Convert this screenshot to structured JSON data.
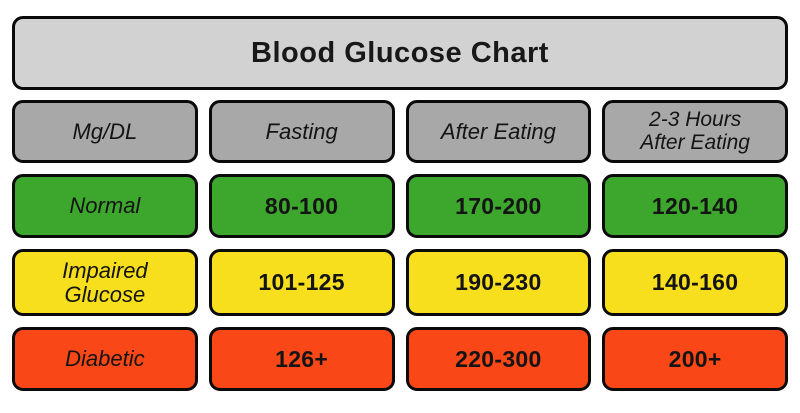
{
  "title": "Blood Glucose Chart",
  "unit_label": "Mg/DL",
  "colors": {
    "title_bg": "#d2d2d2",
    "header_bg": "#a8a8a8",
    "normal_bg": "#3ca62d",
    "impaired_bg": "#f8df1d",
    "diabetic_bg": "#fa4717",
    "border": "#0a0a0a",
    "text": "#141414"
  },
  "header_row": {
    "cells": [
      {
        "lines": [
          "Mg/DL"
        ]
      },
      {
        "lines": [
          "Fasting"
        ]
      },
      {
        "lines": [
          "After Eating"
        ]
      },
      {
        "lines": [
          "2-3 Hours",
          "After Eating"
        ]
      }
    ]
  },
  "rows": [
    {
      "name": "normal",
      "bg": "#3ca62d",
      "label_lines": [
        "Normal"
      ],
      "values": [
        "80-100",
        "170-200",
        "120-140"
      ]
    },
    {
      "name": "impaired-glucose",
      "bg": "#f8df1d",
      "label_lines": [
        "Impaired",
        "Glucose"
      ],
      "values": [
        "101-125",
        "190-230",
        "140-160"
      ]
    },
    {
      "name": "diabetic",
      "bg": "#fa4717",
      "label_lines": [
        "Diabetic"
      ],
      "values": [
        "126+",
        "220-300",
        "200+"
      ]
    }
  ],
  "chart_data": {
    "type": "table",
    "title": "Blood Glucose Chart",
    "unit": "Mg/DL",
    "columns": [
      "Mg/DL",
      "Fasting",
      "After Eating",
      "2-3 Hours After Eating"
    ],
    "rows": [
      {
        "category": "Normal",
        "fasting": "80-100",
        "after_eating": "170-200",
        "hours_2_3_after_eating": "120-140",
        "status_color": "#3ca62d"
      },
      {
        "category": "Impaired Glucose",
        "fasting": "101-125",
        "after_eating": "190-230",
        "hours_2_3_after_eating": "140-160",
        "status_color": "#f8df1d"
      },
      {
        "category": "Diabetic",
        "fasting": "126+",
        "after_eating": "220-300",
        "hours_2_3_after_eating": "200+",
        "status_color": "#fa4717"
      }
    ]
  }
}
